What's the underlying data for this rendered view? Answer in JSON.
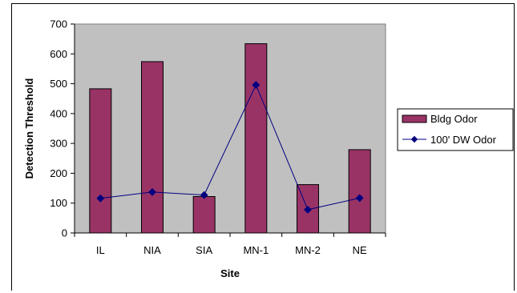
{
  "chart_data": {
    "type": "bar",
    "categories": [
      "IL",
      "NIA",
      "SIA",
      "MN-1",
      "MN-2",
      "NE"
    ],
    "series": [
      {
        "name": "Bldg Odor",
        "type": "bar",
        "values": [
          483,
          574,
          122,
          634,
          162,
          279
        ]
      },
      {
        "name": "100' DW Odor",
        "type": "line",
        "values": [
          116,
          137,
          127,
          496,
          78,
          117
        ]
      }
    ],
    "xlabel": "Site",
    "ylabel": "Detection Threshold",
    "ylim": [
      0,
      700
    ],
    "yticks": [
      0,
      100,
      200,
      300,
      400,
      500,
      600,
      700
    ],
    "grid": false,
    "legend_position": "right",
    "colors": {
      "plot_background": "#c0c0c0",
      "bar_fill": "#993366",
      "bar_stroke": "#000000",
      "line": "#000080"
    }
  }
}
